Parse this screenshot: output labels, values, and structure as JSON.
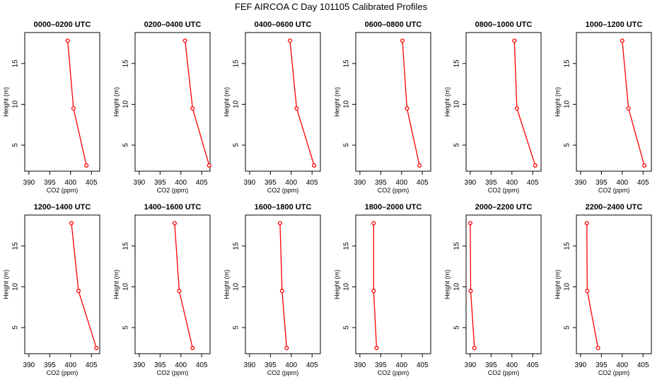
{
  "title": "FEF AIRCOA C  Day 101105  Calibrated Profiles",
  "colors": {
    "profile": "#ff0000",
    "axes": "#000000"
  },
  "chart_data": [
    {
      "type": "line",
      "title": "0000–0200 UTC",
      "xlabel": "CO2 (ppm)",
      "ylabel": "Height (m)",
      "xlim": [
        389,
        407
      ],
      "ylim": [
        1.8,
        18.8
      ],
      "xticks": [
        390,
        395,
        400,
        405
      ],
      "yticks": [
        5,
        10,
        15
      ],
      "grid": false,
      "series": [
        {
          "x": [
            399.3,
            400.7,
            403.8
          ],
          "y": [
            17.8,
            9.5,
            2.5
          ]
        }
      ]
    },
    {
      "type": "line",
      "title": "0200–0400 UTC",
      "xlabel": "CO2 (ppm)",
      "ylabel": "Height (m)",
      "xlim": [
        389,
        407
      ],
      "ylim": [
        1.8,
        18.8
      ],
      "xticks": [
        390,
        395,
        400,
        405
      ],
      "yticks": [
        5,
        10,
        15
      ],
      "grid": false,
      "series": [
        {
          "x": [
            401.0,
            402.8,
            406.8
          ],
          "y": [
            17.8,
            9.5,
            2.5
          ]
        }
      ]
    },
    {
      "type": "line",
      "title": "0400–0600 UTC",
      "xlabel": "CO2 (ppm)",
      "ylabel": "Height (m)",
      "xlim": [
        389,
        407
      ],
      "ylim": [
        1.8,
        18.8
      ],
      "xticks": [
        390,
        395,
        400,
        405
      ],
      "yticks": [
        5,
        10,
        15
      ],
      "grid": false,
      "series": [
        {
          "x": [
            399.7,
            401.3,
            405.5
          ],
          "y": [
            17.8,
            9.5,
            2.5
          ]
        }
      ]
    },
    {
      "type": "line",
      "title": "0600–0800 UTC",
      "xlabel": "CO2 (ppm)",
      "ylabel": "Height (m)",
      "xlim": [
        389,
        407
      ],
      "ylim": [
        1.8,
        18.8
      ],
      "xticks": [
        390,
        395,
        400,
        405
      ],
      "yticks": [
        5,
        10,
        15
      ],
      "grid": false,
      "series": [
        {
          "x": [
            400.2,
            401.3,
            404.3
          ],
          "y": [
            17.8,
            9.5,
            2.5
          ]
        }
      ]
    },
    {
      "type": "line",
      "title": "0800–1000 UTC",
      "xlabel": "CO2 (ppm)",
      "ylabel": "Height (m)",
      "xlim": [
        389,
        407
      ],
      "ylim": [
        1.8,
        18.8
      ],
      "xticks": [
        390,
        395,
        400,
        405
      ],
      "yticks": [
        5,
        10,
        15
      ],
      "grid": false,
      "series": [
        {
          "x": [
            400.6,
            401.2,
            405.6
          ],
          "y": [
            17.8,
            9.5,
            2.5
          ]
        }
      ]
    },
    {
      "type": "line",
      "title": "1000–1200 UTC",
      "xlabel": "CO2 (ppm)",
      "ylabel": "Height (m)",
      "xlim": [
        389,
        407
      ],
      "ylim": [
        1.8,
        18.8
      ],
      "xticks": [
        390,
        395,
        400,
        405
      ],
      "yticks": [
        5,
        10,
        15
      ],
      "grid": false,
      "series": [
        {
          "x": [
            400.0,
            401.5,
            405.3
          ],
          "y": [
            17.8,
            9.5,
            2.5
          ]
        }
      ]
    },
    {
      "type": "line",
      "title": "1200–1400 UTC",
      "xlabel": "CO2 (ppm)",
      "ylabel": "Height (m)",
      "xlim": [
        389,
        407
      ],
      "ylim": [
        1.8,
        18.8
      ],
      "xticks": [
        390,
        395,
        400,
        405
      ],
      "yticks": [
        5,
        10,
        15
      ],
      "grid": false,
      "series": [
        {
          "x": [
            400.2,
            401.9,
            406.2
          ],
          "y": [
            17.8,
            9.5,
            2.5
          ]
        }
      ]
    },
    {
      "type": "line",
      "title": "1400–1600 UTC",
      "xlabel": "CO2 (ppm)",
      "ylabel": "Height (m)",
      "xlim": [
        389,
        407
      ],
      "ylim": [
        1.8,
        18.8
      ],
      "xticks": [
        390,
        395,
        400,
        405
      ],
      "yticks": [
        5,
        10,
        15
      ],
      "grid": false,
      "series": [
        {
          "x": [
            398.5,
            399.6,
            402.8
          ],
          "y": [
            17.8,
            9.5,
            2.5
          ]
        }
      ]
    },
    {
      "type": "line",
      "title": "1600–1800 UTC",
      "xlabel": "CO2 (ppm)",
      "ylabel": "Height (m)",
      "xlim": [
        389,
        407
      ],
      "ylim": [
        1.8,
        18.8
      ],
      "xticks": [
        390,
        395,
        400,
        405
      ],
      "yticks": [
        5,
        10,
        15
      ],
      "grid": false,
      "series": [
        {
          "x": [
            397.3,
            397.8,
            398.9
          ],
          "y": [
            17.8,
            9.5,
            2.5
          ]
        }
      ]
    },
    {
      "type": "line",
      "title": "1800–2000 UTC",
      "xlabel": "CO2 (ppm)",
      "ylabel": "Height (m)",
      "xlim": [
        389,
        407
      ],
      "ylim": [
        1.8,
        18.8
      ],
      "xticks": [
        390,
        395,
        400,
        405
      ],
      "yticks": [
        5,
        10,
        15
      ],
      "grid": false,
      "series": [
        {
          "x": [
            393.3,
            393.3,
            394.0
          ],
          "y": [
            17.8,
            9.5,
            2.5
          ]
        }
      ]
    },
    {
      "type": "line",
      "title": "2000–2200 UTC",
      "xlabel": "CO2 (ppm)",
      "ylabel": "Height (m)",
      "xlim": [
        389,
        407
      ],
      "ylim": [
        1.8,
        18.8
      ],
      "xticks": [
        390,
        395,
        400,
        405
      ],
      "yticks": [
        5,
        10,
        15
      ],
      "grid": false,
      "series": [
        {
          "x": [
            390.0,
            390.1,
            391.0
          ],
          "y": [
            17.8,
            9.5,
            2.5
          ]
        }
      ]
    },
    {
      "type": "line",
      "title": "2200–2400 UTC",
      "xlabel": "CO2 (ppm)",
      "ylabel": "Height (m)",
      "xlim": [
        389,
        407
      ],
      "ylim": [
        1.8,
        18.8
      ],
      "xticks": [
        390,
        395,
        400,
        405
      ],
      "yticks": [
        5,
        10,
        15
      ],
      "grid": false,
      "series": [
        {
          "x": [
            391.5,
            391.6,
            394.2
          ],
          "y": [
            17.8,
            9.5,
            2.5
          ]
        }
      ]
    }
  ]
}
